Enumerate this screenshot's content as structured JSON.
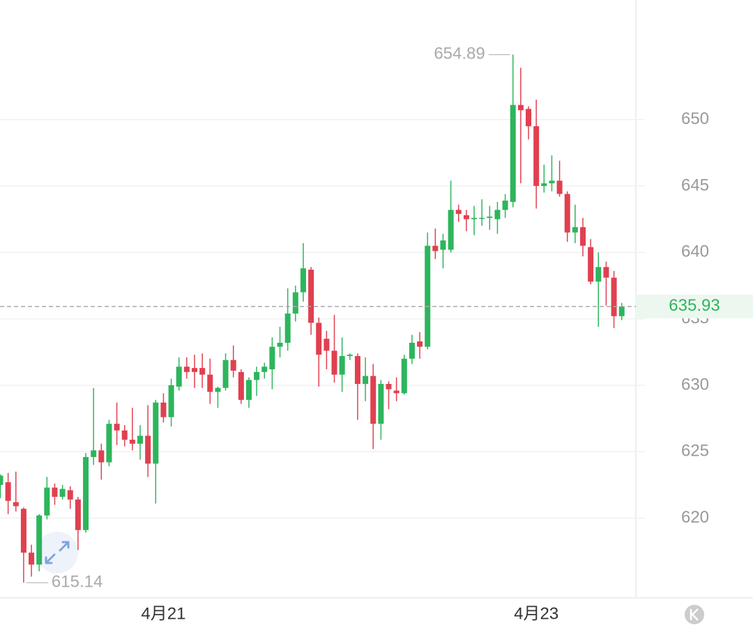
{
  "chart_data": {
    "type": "candlestick",
    "up_color": "#2db55d",
    "down_color": "#e04050",
    "grid": true,
    "ylim": [
      614,
      659
    ],
    "yticks": [
      620,
      625,
      630,
      635,
      640,
      645,
      650
    ],
    "xticks": [
      {
        "value": 21,
        "label": "4月21"
      },
      {
        "value": 69,
        "label": "4月23"
      }
    ],
    "open": [
      622.5,
      622.7,
      621.2,
      620.7,
      617.4,
      616.5,
      620.2,
      622.3,
      621.6,
      622.1,
      621.4,
      619.1,
      624.6,
      625.1,
      624.2,
      627.1,
      626.6,
      625.9,
      625.6,
      626.2,
      624.1,
      628.7,
      627.6,
      629.9,
      631.4,
      631.3,
      631.3,
      630.8,
      629.5,
      629.8,
      631.9,
      631,
      628.9,
      630.4,
      631,
      631.2,
      632.9,
      633.2,
      635.4,
      637,
      638.7,
      634.7,
      633.5,
      632.6,
      630.8,
      632.2,
      632.2,
      630.1,
      630.7,
      627.1,
      630.1,
      629.6,
      629.4,
      632,
      633.3,
      632.9,
      640.5,
      640.2,
      640.2,
      643.2,
      642.8,
      642.5,
      642.6,
      642.6,
      642.5,
      643.2,
      643.8,
      651.1,
      650.8,
      649.5,
      645,
      645.2,
      645.4,
      644.4,
      641.5,
      641.9,
      640.4,
      637.8,
      638.9,
      638.1,
      635.2
    ],
    "close": [
      623.2,
      621.3,
      620.9,
      617.4,
      616.5,
      620.2,
      622.3,
      621.6,
      622.2,
      621.4,
      619.1,
      624.6,
      625.1,
      624.2,
      627.1,
      626.6,
      625.9,
      625.6,
      626.2,
      624.1,
      628.7,
      627.6,
      630,
      631.4,
      631,
      631,
      630.8,
      629.5,
      629.8,
      631.9,
      631.1,
      628.9,
      630.4,
      631,
      631.4,
      632.9,
      633.2,
      635.4,
      637,
      638.8,
      634.7,
      632.3,
      632.6,
      630.8,
      632.2,
      632.3,
      630.1,
      630.7,
      627.1,
      630.1,
      629.7,
      629.4,
      632,
      633.2,
      632.9,
      640.5,
      640.1,
      640.9,
      643.2,
      642.9,
      642.5,
      642.6,
      642.6,
      642.7,
      643.2,
      643.9,
      651.1,
      650.7,
      649.5,
      645,
      645.2,
      645.4,
      644.4,
      641.5,
      641.9,
      640.5,
      637.8,
      638.9,
      638.1,
      635.2,
      635.93
    ],
    "high": [
      623.3,
      623.4,
      623.5,
      620.8,
      618,
      620.3,
      623.1,
      622.6,
      622.5,
      622.4,
      621.6,
      624.9,
      629.8,
      625.6,
      627.4,
      628.7,
      627,
      628.3,
      627,
      628.5,
      628.9,
      629.4,
      630.5,
      632.1,
      632.1,
      632.3,
      632.4,
      632,
      629.9,
      632.4,
      633,
      631.2,
      630.6,
      631.4,
      631.7,
      633.6,
      634.4,
      637.3,
      637.5,
      640.7,
      638.9,
      635.1,
      634.1,
      635.3,
      633.6,
      632.4,
      632.4,
      632.1,
      631.6,
      630.4,
      630.3,
      630.6,
      632.3,
      633.8,
      634,
      641.5,
      641.8,
      641.4,
      645.4,
      643.6,
      643.2,
      643.5,
      644,
      643.5,
      643.8,
      644.4,
      654.89,
      653.9,
      651,
      651.5,
      646.6,
      647.3,
      646.9,
      644.6,
      643.6,
      642.6,
      641,
      640,
      639.3,
      638.6,
      636.2
    ],
    "low": [
      621.5,
      620.3,
      620.5,
      615.14,
      615.6,
      616,
      619.9,
      621,
      621.4,
      620.7,
      617.6,
      618.9,
      624,
      622.9,
      623.9,
      625.5,
      625.4,
      625.1,
      624.4,
      623.1,
      621.1,
      627.2,
      626.9,
      629.6,
      630.5,
      629.8,
      629.8,
      628.6,
      628.3,
      629.6,
      630.6,
      628.6,
      628.3,
      629.2,
      630.5,
      629.7,
      632.1,
      632.6,
      634.8,
      636.3,
      633.8,
      629.9,
      631.2,
      630.2,
      629.5,
      631.9,
      627.4,
      628.8,
      625.2,
      625.9,
      628.2,
      628.8,
      629.3,
      631.6,
      632,
      632.7,
      639.5,
      638.8,
      640,
      642.3,
      641.6,
      641.3,
      642,
      641.7,
      641.4,
      642.6,
      643.4,
      645.2,
      648.5,
      643.3,
      644.5,
      644.6,
      644.2,
      640.8,
      640.7,
      639.7,
      637.6,
      634.4,
      636,
      634.3,
      634.9
    ]
  }
}
